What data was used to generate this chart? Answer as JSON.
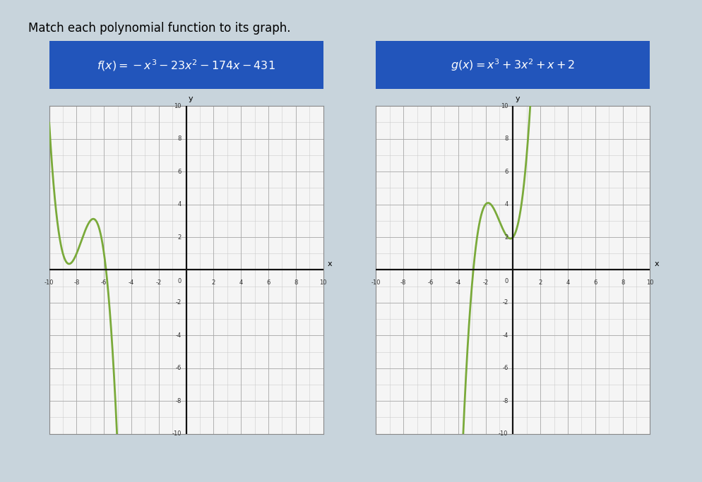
{
  "title": "Match each polynomial function to its graph.",
  "f_label_math": "$f(x) = -x^3 - 23x^2 - 174x - 431$",
  "g_label_math": "$g(x) = x^3 + 3x^2 + x + 2$",
  "xlim": [
    -10,
    10
  ],
  "ylim": [
    -10,
    10
  ],
  "curve_color": "#7aaa3a",
  "header_bg": "#2255bb",
  "header_text_color": "#ffffff",
  "bg_color": "#c8d4dc",
  "graph_bg": "#f5f5f5",
  "answer_box_color": "#b8d8f0",
  "grid_major_color": "#aaaaaa",
  "grid_minor_color": "#cccccc",
  "axis_color": "#111111",
  "title_fontsize": 12,
  "label_fontsize": 11.5
}
